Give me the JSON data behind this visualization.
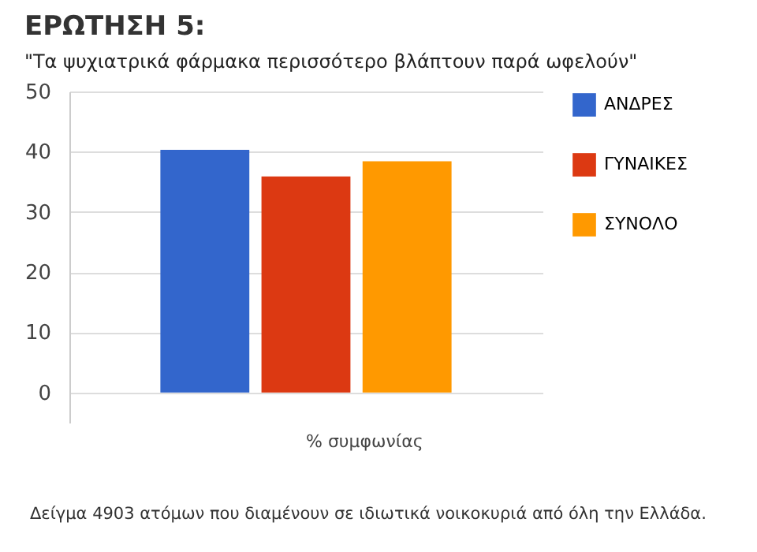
{
  "chart_data": {
    "type": "bar",
    "title": "ΕΡΩΤΗΣΗ 5:",
    "subtitle": "\"Τα ψυχιατρικά φάρμακα περισσότερο βλάπτουν παρά ωφελούν\"",
    "categories": [
      "% συμφωνίας"
    ],
    "series": [
      {
        "name": "ΑΝΔΡΕΣ",
        "color": "#3366cc",
        "values": [
          40.3
        ]
      },
      {
        "name": "ΓΥΝΑΙΚΕΣ",
        "color": "#dc3912",
        "values": [
          35.9
        ]
      },
      {
        "name": "ΣΥΝΟΛΟ",
        "color": "#ff9900",
        "values": [
          38.4
        ]
      }
    ],
    "ylim": [
      -5,
      50
    ],
    "yticks": [
      0,
      10,
      20,
      30,
      40,
      50
    ],
    "grid": "y",
    "legend": "right",
    "annotations": [
      "Δείγμα 4903 ατόμων που διαμένουν σε ιδιωτικά νοικοκυριά από όλη την Ελλάδα."
    ]
  }
}
